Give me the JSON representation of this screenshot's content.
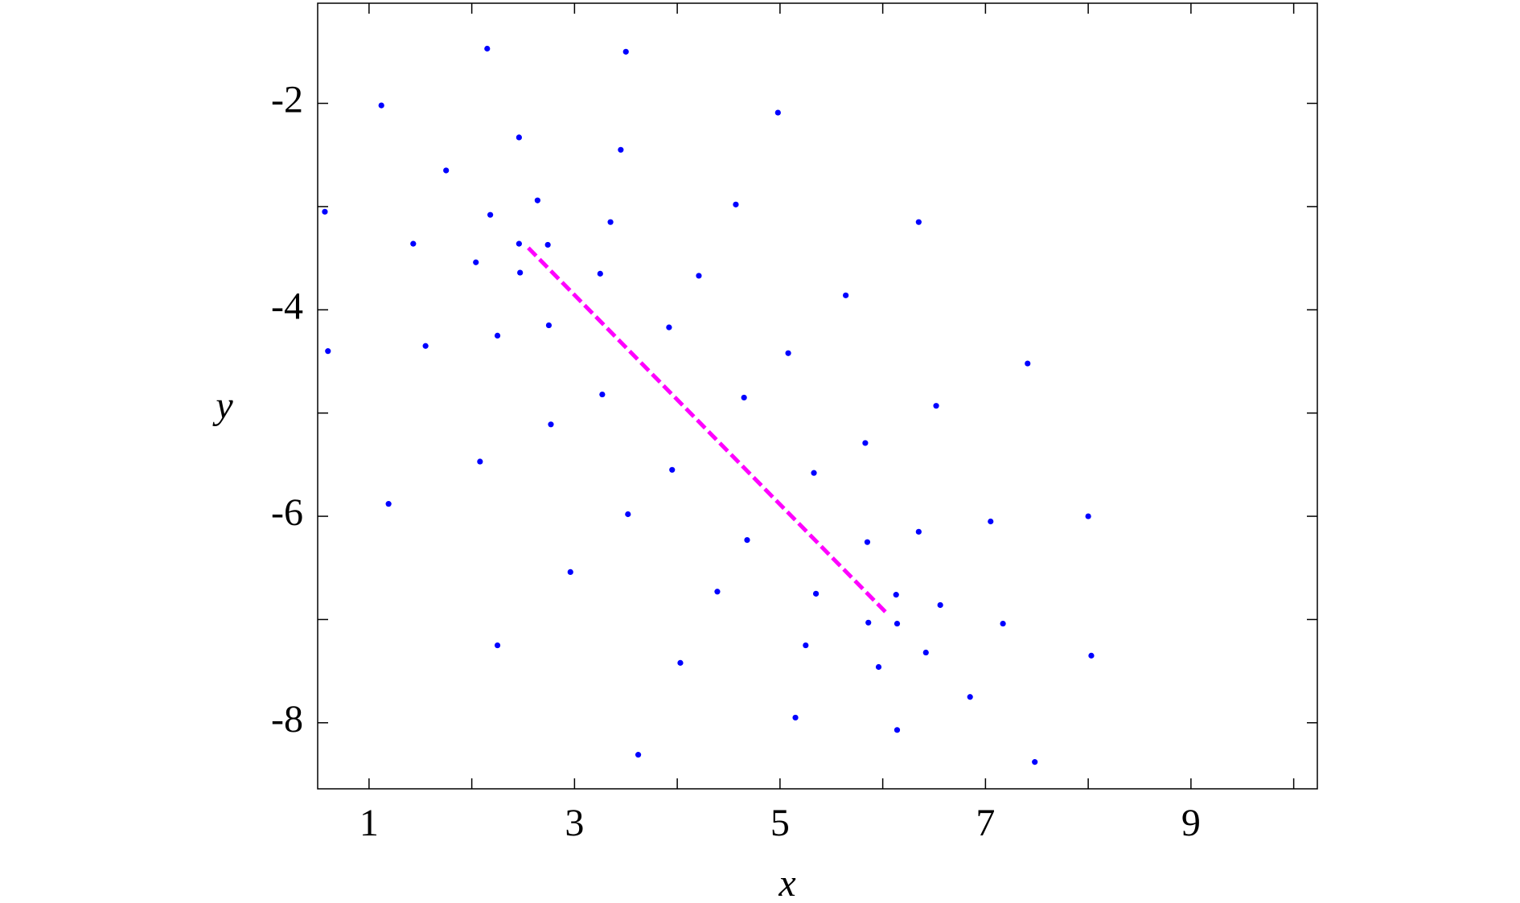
{
  "chart_data": {
    "type": "scatter",
    "xlabel": "x",
    "ylabel": "y",
    "xlim": [
      0.5,
      10.23
    ],
    "ylim": [
      -8.64,
      -1.03
    ],
    "xticks": [
      1,
      3,
      5,
      7,
      9
    ],
    "yticks": [
      -2,
      -4,
      -6,
      -8
    ],
    "xminorticks": [
      2,
      4,
      6,
      8,
      10
    ],
    "yminorticks": [
      -3,
      -5,
      -7
    ],
    "series": [
      {
        "color": "#0000ff",
        "x": [
          6.14,
          6.13,
          5.85,
          5.33,
          4.65,
          3.92,
          3.25,
          2.74,
          2.46,
          2.47,
          2.75,
          3.27,
          3.95,
          4.68,
          5.35,
          5.86
        ],
        "values": [
          -7.04,
          -6.76,
          -6.25,
          -5.58,
          -4.85,
          -4.17,
          -3.65,
          -3.37,
          -3.36,
          -3.64,
          -4.15,
          -4.82,
          -5.55,
          -6.23,
          -6.75,
          -7.03
        ]
      },
      {
        "color": "#0000ff",
        "x": [
          6.42,
          6.56,
          6.35,
          5.83,
          5.08,
          4.21,
          3.35,
          2.64,
          2.18,
          2.04,
          2.25,
          2.77,
          3.52,
          4.39,
          5.25,
          5.96
        ],
        "values": [
          -7.32,
          -6.86,
          -6.15,
          -5.29,
          -4.42,
          -3.67,
          -3.15,
          -2.94,
          -3.08,
          -3.54,
          -4.25,
          -5.11,
          -5.98,
          -6.73,
          -7.25,
          -7.46
        ]
      },
      {
        "color": "#0000ff",
        "x": [
          6.85,
          7.17,
          7.05,
          6.52,
          5.64,
          4.57,
          3.45,
          2.46,
          1.75,
          1.43,
          1.55,
          2.08,
          2.96,
          4.03,
          5.15,
          6.14
        ],
        "values": [
          -7.75,
          -7.04,
          -6.05,
          -4.93,
          -3.86,
          -2.98,
          -2.45,
          -2.33,
          -2.65,
          -3.36,
          -4.35,
          -5.47,
          -6.54,
          -7.42,
          -7.95,
          -8.07
        ]
      },
      {
        "color": "#0000ff",
        "x": [
          7.48,
          8.03,
          8.0,
          7.41,
          6.35,
          4.98,
          3.5,
          2.15,
          1.12,
          0.57,
          0.6,
          1.19,
          2.25,
          3.62
        ],
        "values": [
          -8.38,
          -7.35,
          -6.0,
          -4.52,
          -3.15,
          -2.09,
          -1.5,
          -1.47,
          -2.02,
          -3.05,
          -4.4,
          -5.88,
          -7.25,
          -8.31
        ]
      }
    ],
    "line": {
      "color": "#ff00ff",
      "x": [
        2.55,
        6.05
      ],
      "values": [
        -3.4,
        -6.95
      ]
    }
  }
}
